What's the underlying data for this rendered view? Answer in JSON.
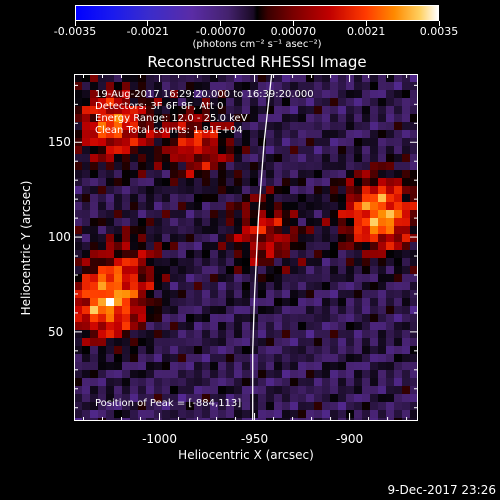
{
  "colorbar": {
    "tick_labels": [
      "-0.0035",
      "-0.0021",
      "-0.00070",
      "0.00070",
      "0.0021",
      "0.0035"
    ],
    "tick_values": [
      -0.0035,
      -0.0021,
      -0.0007,
      0.0007,
      0.0021,
      0.0035
    ],
    "units": "(photons cm⁻² s⁻¹ asec⁻²)",
    "colors": [
      "#0000ff",
      "#5a2ca6",
      "#000000",
      "#c00000",
      "#ff8a00",
      "#ffffff"
    ]
  },
  "title": "Reconstructed RHESSI Image",
  "info": {
    "line1": "19-Aug-2017 16:29:20.000 to 16:39:20.000",
    "line2": "Detectors: 3F 6F 8F, Att 0",
    "line3": "Energy Range: 12.0 - 25.0 keV",
    "line4": "Clean     Total counts: 1.81E+04"
  },
  "peak": "Position of Peak = [-884,113]",
  "chart_data": {
    "type": "heatmap",
    "title": "Reconstructed RHESSI Image",
    "xlabel": "Heliocentric X (arcsec)",
    "ylabel": "Heliocentric Y (arcsec)",
    "xlim": [
      -1045,
      -864
    ],
    "ylim": [
      3,
      186
    ],
    "x_ticks": [
      -1000,
      -950,
      -900
    ],
    "x_tick_labels": [
      "-1000",
      "-950",
      "-900"
    ],
    "y_ticks": [
      50,
      100,
      150
    ],
    "y_tick_labels": [
      "50",
      "100",
      "150"
    ],
    "colorbar_range": [
      -0.0035,
      0.0035
    ],
    "sources": [
      {
        "x": -884,
        "y": 113,
        "peak": 1.0
      },
      {
        "x": -1028,
        "y": 67,
        "peak": 0.95
      },
      {
        "x": -1025,
        "y": 160,
        "peak": 0.8
      },
      {
        "x": -980,
        "y": 150,
        "peak": 0.6
      },
      {
        "x": -945,
        "y": 103,
        "peak": 0.55
      },
      {
        "x": -1015,
        "y": 90,
        "peak": 0.35
      }
    ],
    "limb": [
      [
        -941,
        186
      ],
      [
        -945,
        150
      ],
      [
        -948,
        110
      ],
      [
        -950,
        70
      ],
      [
        -951,
        40
      ],
      [
        -951,
        3
      ]
    ],
    "peak_position": [
      -884,
      113
    ]
  },
  "stamp": "9-Dec-2017 23:26"
}
